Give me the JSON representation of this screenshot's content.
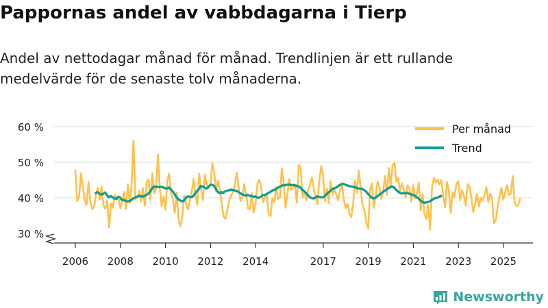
{
  "header": {
    "title": "Pappornas andel av vabbdagarna i Tierp",
    "subtitle": "Andel av nettodagar månad för månad. Trendlinjen är ett rullande medelvärde för de senaste tolv månaderna."
  },
  "brand": {
    "name": "Newsworthy",
    "logo_icon": "bar-chart-logo-icon"
  },
  "colors": {
    "monthly": "#ffc04a",
    "trend": "#109e95",
    "grid": "#dddddd",
    "axis": "#333333"
  },
  "chart_data": {
    "type": "line",
    "title": "Pappornas andel av vabbdagarna i Tierp",
    "ylabel": "",
    "xlabel": "",
    "y_ticks": [
      30,
      40,
      50,
      60
    ],
    "y_tick_labels": [
      "30 %",
      "40 %",
      "50 %",
      "60 %"
    ],
    "y_axis_broken": true,
    "ylim": [
      28,
      62
    ],
    "x_range": [
      2005.5,
      2026.2
    ],
    "x_ticks": [
      2006,
      2008,
      2010,
      2012,
      2014,
      2017,
      2019,
      2021,
      2023,
      2025
    ],
    "x_tick_labels": [
      "2006",
      "2008",
      "2010",
      "2012",
      "2014",
      "2017",
      "2019",
      "2021",
      "2023",
      "2025"
    ],
    "legend_position": "top-right",
    "series": [
      {
        "name": "Per månad",
        "x_start": 2006.0,
        "step": 0.0833,
        "values": [
          47.8,
          39.1,
          40.2,
          46.9,
          43.1,
          39.2,
          38.0,
          44.5,
          38.9,
          36.8,
          37.5,
          41.0,
          42.8,
          39.5,
          43.2,
          37.8,
          36.9,
          39.2,
          31.7,
          38.5,
          37.2,
          40.8,
          39.4,
          39.8,
          37.0,
          38.9,
          41.7,
          36.8,
          43.8,
          38.5,
          44.1,
          56.1,
          39.7,
          40.2,
          41.8,
          38.9,
          42.7,
          37.8,
          44.6,
          45.1,
          39.4,
          46.9,
          41.3,
          42.6,
          52.2,
          42.7,
          37.6,
          40.4,
          36.6,
          44.9,
          46.8,
          41.2,
          39.6,
          35.8,
          41.5,
          33.9,
          31.9,
          35.2,
          40.6,
          38.4,
          36.7,
          39.1,
          41.8,
          45.3,
          40.9,
          38.0,
          46.8,
          42.3,
          39.4,
          46.5,
          43.8,
          42.7,
          44.1,
          49.7,
          47.2,
          41.9,
          44.8,
          42.2,
          38.3,
          34.7,
          34.1,
          36.8,
          39.2,
          40.6,
          41.7,
          43.9,
          47.1,
          42.8,
          39.1,
          40.3,
          43.8,
          40.9,
          37.0,
          36.8,
          41.3,
          35.9,
          38.4,
          44.0,
          45.1,
          42.9,
          38.7,
          40.3,
          40.6,
          35.4,
          34.9,
          39.8,
          38.8,
          43.1,
          39.7,
          40.0,
          48.3,
          44.1,
          37.2,
          41.0,
          45.3,
          42.2,
          42.9,
          43.8,
          38.6,
          49.2,
          48.4,
          40.1,
          41.8,
          39.3,
          42.4,
          43.6,
          45.7,
          42.8,
          40.4,
          38.2,
          45.1,
          48.9,
          46.1,
          39.0,
          42.6,
          38.5,
          44.7,
          40.8,
          42.3,
          40.9,
          39.3,
          42.1,
          44.2,
          39.7,
          37.1,
          38.3,
          35.4,
          34.6,
          38.2,
          44.9,
          41.3,
          47.6,
          42.9,
          38.0,
          36.5,
          33.0,
          31.4,
          42.3,
          44.1,
          37.2,
          40.3,
          44.6,
          43.1,
          39.7,
          42.0,
          46.1,
          40.8,
          48.4,
          43.2,
          49.2,
          49.8,
          44.5,
          45.6,
          41.7,
          44.1,
          42.3,
          40.1,
          43.5,
          42.7,
          38.9,
          43.6,
          39.8,
          41.2,
          44.2,
          36.5,
          41.1,
          35.4,
          34.0,
          38.1,
          31.0,
          42.8,
          45.6,
          44.3,
          45.2,
          43.7,
          45.0,
          40.3,
          37.3,
          44.4,
          42.1,
          35.7,
          41.6,
          40.3,
          43.8,
          44.7,
          39.3,
          42.2,
          40.7,
          37.8,
          43.8,
          43.2,
          39.9,
          36.0,
          38.3,
          41.1,
          37.6,
          40.0,
          39.1,
          40.9,
          43.0,
          38.8,
          41.2,
          40.0,
          32.8,
          33.6,
          37.6,
          40.5,
          42.8,
          39.4,
          41.6,
          43.5,
          40.8,
          41.2,
          46.1,
          39.0,
          37.6,
          38.0,
          39.7
        ]
      },
      {
        "name": "Trend",
        "x_start": 2006.9,
        "step": 0.0833,
        "values": [
          41.3,
          41.6,
          41.2,
          40.9,
          41.1,
          41.5,
          40.8,
          40.1,
          40.5,
          40.2,
          39.8,
          39.7,
          40.3,
          40.1,
          39.4,
          39.3,
          39.2,
          39.0,
          39.1,
          39.4,
          39.8,
          40.1,
          40.3,
          40.5,
          40.5,
          40.3,
          40.5,
          40.8,
          41.1,
          41.8,
          42.5,
          43.2,
          43.0,
          43.1,
          43.0,
          43.1,
          42.9,
          42.7,
          42.6,
          42.9,
          42.4,
          41.8,
          41.1,
          40.2,
          39.6,
          39.3,
          39.0,
          39.2,
          39.9,
          40.4,
          40.3,
          40.2,
          40.5,
          41.2,
          41.9,
          42.4,
          43.3,
          43.2,
          42.9,
          42.6,
          43.0,
          43.6,
          43.7,
          43.4,
          42.5,
          41.7,
          41.3,
          41.6,
          41.4,
          41.8,
          42.0,
          42.1,
          42.3,
          42.2,
          42.1,
          41.9,
          41.7,
          41.3,
          41.0,
          40.8,
          40.6,
          40.8,
          40.6,
          40.5,
          40.3,
          40.4,
          40.1,
          40.0,
          40.3,
          40.7,
          40.8,
          41.0,
          41.4,
          41.6,
          42.0,
          42.2,
          42.4,
          42.8,
          43.1,
          43.3,
          43.6,
          43.5,
          43.7,
          43.7,
          43.6,
          43.6,
          43.5,
          43.4,
          43.2,
          42.9,
          42.3,
          41.9,
          41.4,
          40.8,
          40.2,
          39.9,
          39.8,
          40.0,
          40.4,
          40.3,
          40.2,
          40.1,
          40.5,
          41.0,
          41.5,
          41.9,
          42.4,
          42.7,
          42.8,
          43.2,
          43.6,
          43.8,
          43.9,
          43.7,
          43.5,
          43.3,
          43.2,
          43.1,
          43.0,
          42.8,
          42.6,
          42.6,
          42.5,
          42.2,
          41.8,
          41.2,
          40.6,
          40.0,
          39.8,
          40.0,
          40.4,
          40.8,
          41.2,
          41.6,
          42.0,
          42.3,
          42.7,
          43.0,
          43.2,
          42.9,
          42.3,
          41.8,
          41.4,
          41.2,
          41.3,
          41.3,
          41.4,
          41.2,
          41.0,
          40.8,
          40.6,
          40.2,
          39.8,
          39.3,
          38.9,
          38.6,
          38.7,
          38.8,
          39.0,
          39.3,
          39.7,
          39.9,
          40.0,
          40.3,
          40.5
        ]
      }
    ]
  }
}
